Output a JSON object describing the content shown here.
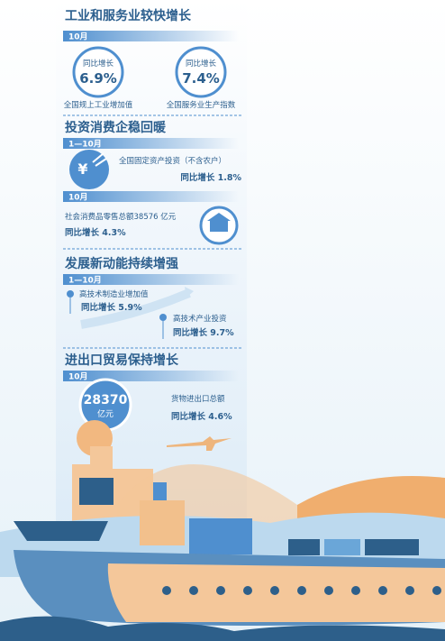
{
  "sections": [
    {
      "title": "工业和服务业较快增长",
      "tag": "10月",
      "items": [
        {
          "label": "同比增长",
          "value": "6.9%",
          "caption": "全国规上工业增加值"
        },
        {
          "label": "同比增长",
          "value": "7.4%",
          "caption": "全国服务业生产指数"
        }
      ]
    },
    {
      "title": "投资消费企稳回暖",
      "tag": "1—10月",
      "items": [
        {
          "caption": "全国固定资产投资（不含农户）",
          "value": "同比增长 1.8%"
        }
      ],
      "tag2": "10月",
      "items2": [
        {
          "caption": "社会消费品零售总额38576 亿元",
          "value": "同比增长 4.3%"
        }
      ]
    },
    {
      "title": "发展新动能持续增强",
      "tag": "1—10月",
      "items": [
        {
          "caption": "高技术制造业增加值",
          "value": "同比增长 5.9%"
        },
        {
          "caption": "高技术产业投资",
          "value": "同比增长 9.7%"
        }
      ]
    },
    {
      "title": "进出口贸易保持增长",
      "tag": "10月",
      "items": [
        {
          "value": "28370",
          "unit": "亿元",
          "caption": "货物进出口总额",
          "label": "同比增长 4.6%"
        }
      ]
    }
  ]
}
